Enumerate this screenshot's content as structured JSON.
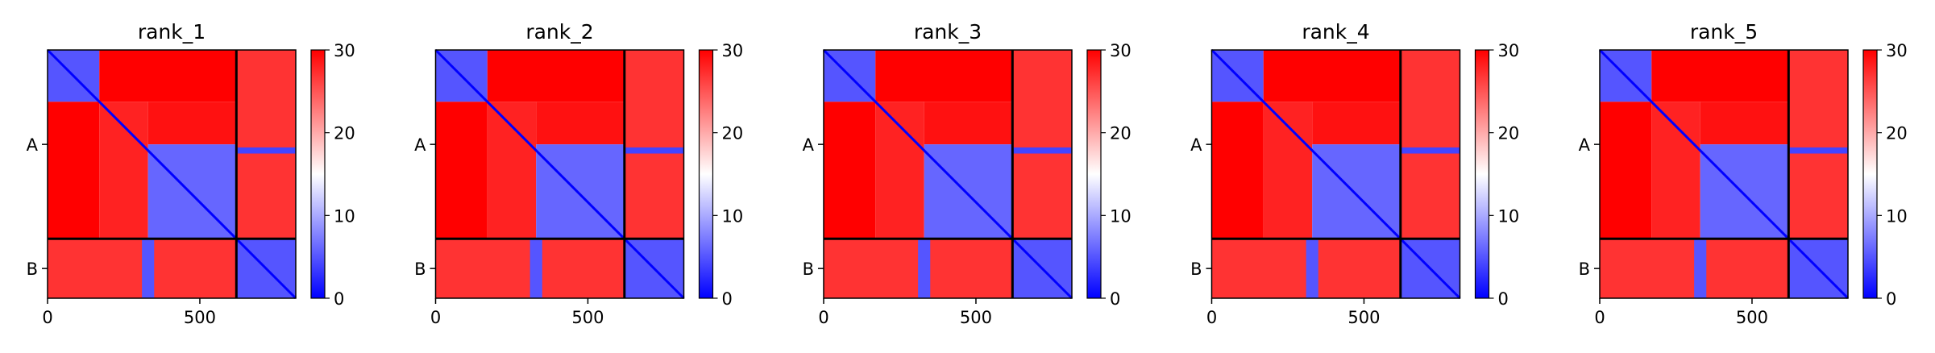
{
  "chart_data": {
    "type": "heatmap",
    "panels": [
      {
        "title": "rank_1"
      },
      {
        "title": "rank_2"
      },
      {
        "title": "rank_3"
      },
      {
        "title": "rank_4"
      },
      {
        "title": "rank_5"
      }
    ],
    "x_ticks": [
      0,
      500
    ],
    "x_tick_labels": [
      "0",
      "500"
    ],
    "xlim": [
      0,
      815
    ],
    "ylim": [
      815,
      0
    ],
    "chains": [
      {
        "label": "A",
        "start": 0,
        "end": 620
      },
      {
        "label": "B",
        "start": 620,
        "end": 815
      }
    ],
    "colorbar": {
      "min": 0,
      "max": 30,
      "ticks": [
        0,
        10,
        20,
        30
      ],
      "tick_labels": [
        "0",
        "10",
        "20",
        "30"
      ],
      "colormap": "bwr",
      "low_color": "#0000ff",
      "mid_color": "#ffffff",
      "high_color": "#ff0000"
    },
    "blocks": [
      {
        "x": [
          0,
          170
        ],
        "y": [
          0,
          170
        ],
        "value": 5
      },
      {
        "x": [
          170,
          620
        ],
        "y": [
          0,
          170
        ],
        "value": 30
      },
      {
        "x": [
          0,
          170
        ],
        "y": [
          170,
          620
        ],
        "value": 30
      },
      {
        "x": [
          170,
          330
        ],
        "y": [
          170,
          620
        ],
        "value": 28
      },
      {
        "x": [
          330,
          620
        ],
        "y": [
          170,
          310
        ],
        "value": 29
      },
      {
        "x": [
          330,
          620
        ],
        "y": [
          310,
          620
        ],
        "value": 6
      },
      {
        "x": [
          620,
          815
        ],
        "y": [
          0,
          620
        ],
        "value": 27
      },
      {
        "x": [
          0,
          620
        ],
        "y": [
          620,
          815
        ],
        "value": 27
      },
      {
        "x": [
          620,
          815
        ],
        "y": [
          620,
          815
        ],
        "value": 5
      }
    ],
    "diagonal_value": 0,
    "band_rows": [
      {
        "y": [
          320,
          340
        ],
        "x": [
          620,
          815
        ],
        "value": 4
      }
    ],
    "band_cols": [
      {
        "x": [
          310,
          350
        ],
        "y": [
          620,
          815
        ],
        "value": 5
      }
    ]
  }
}
